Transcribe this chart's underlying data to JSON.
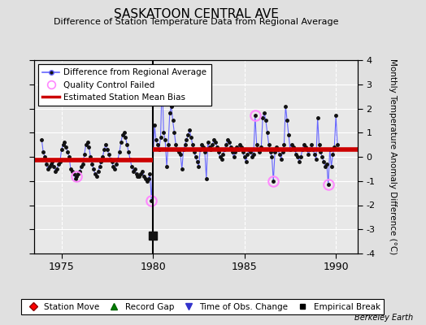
{
  "title": "SASKATOON CENTRAL AVE",
  "subtitle": "Difference of Station Temperature Data from Regional Average",
  "ylabel": "Monthly Temperature Anomaly Difference (°C)",
  "xlabel_years": [
    1975,
    1980,
    1985,
    1990
  ],
  "ylim": [
    -4,
    4
  ],
  "xlim": [
    1973.5,
    1991.2
  ],
  "background_color": "#e0e0e0",
  "plot_background": "#e8e8e8",
  "grid_color": "#ffffff",
  "bias_segment1": {
    "x": [
      1973.5,
      1980.0
    ],
    "y": [
      -0.15,
      -0.15
    ]
  },
  "bias_segment2": {
    "x": [
      1980.0,
      1991.2
    ],
    "y": [
      0.3,
      0.3
    ]
  },
  "break_x": 1980.0,
  "break_y": -3.25,
  "monthly_data": [
    [
      1973.917,
      0.7
    ],
    [
      1974.0,
      0.2
    ],
    [
      1974.083,
      0.0
    ],
    [
      1974.167,
      -0.3
    ],
    [
      1974.25,
      -0.5
    ],
    [
      1974.333,
      -0.4
    ],
    [
      1974.417,
      -0.3
    ],
    [
      1974.5,
      -0.2
    ],
    [
      1974.583,
      -0.4
    ],
    [
      1974.667,
      -0.6
    ],
    [
      1974.75,
      -0.5
    ],
    [
      1974.833,
      -0.3
    ],
    [
      1974.917,
      -0.2
    ],
    [
      1975.0,
      0.3
    ],
    [
      1975.083,
      0.5
    ],
    [
      1975.167,
      0.6
    ],
    [
      1975.25,
      0.4
    ],
    [
      1975.333,
      0.2
    ],
    [
      1975.417,
      0.0
    ],
    [
      1975.5,
      -0.5
    ],
    [
      1975.583,
      -0.6
    ],
    [
      1975.667,
      -0.7
    ],
    [
      1975.75,
      -0.9
    ],
    [
      1975.833,
      -0.8
    ],
    [
      1975.917,
      -0.7
    ],
    [
      1976.0,
      -0.6
    ],
    [
      1976.083,
      -0.4
    ],
    [
      1976.167,
      -0.3
    ],
    [
      1976.25,
      0.1
    ],
    [
      1976.333,
      0.5
    ],
    [
      1976.417,
      0.6
    ],
    [
      1976.5,
      0.4
    ],
    [
      1976.583,
      0.0
    ],
    [
      1976.667,
      -0.3
    ],
    [
      1976.75,
      -0.5
    ],
    [
      1976.833,
      -0.7
    ],
    [
      1976.917,
      -0.8
    ],
    [
      1977.0,
      -0.6
    ],
    [
      1977.083,
      -0.4
    ],
    [
      1977.167,
      -0.2
    ],
    [
      1977.25,
      0.0
    ],
    [
      1977.333,
      0.3
    ],
    [
      1977.417,
      0.5
    ],
    [
      1977.5,
      0.3
    ],
    [
      1977.583,
      0.1
    ],
    [
      1977.667,
      -0.1
    ],
    [
      1977.75,
      -0.2
    ],
    [
      1977.833,
      -0.4
    ],
    [
      1977.917,
      -0.5
    ],
    [
      1978.0,
      -0.3
    ],
    [
      1978.083,
      -0.1
    ],
    [
      1978.167,
      0.2
    ],
    [
      1978.25,
      0.6
    ],
    [
      1978.333,
      0.9
    ],
    [
      1978.417,
      1.0
    ],
    [
      1978.5,
      0.8
    ],
    [
      1978.583,
      0.5
    ],
    [
      1978.667,
      0.2
    ],
    [
      1978.75,
      -0.1
    ],
    [
      1978.833,
      -0.4
    ],
    [
      1978.917,
      -0.6
    ],
    [
      1979.0,
      -0.5
    ],
    [
      1979.083,
      -0.7
    ],
    [
      1979.167,
      -0.8
    ],
    [
      1979.25,
      -0.8
    ],
    [
      1979.333,
      -0.7
    ],
    [
      1979.417,
      -0.6
    ],
    [
      1979.5,
      -0.8
    ],
    [
      1979.583,
      -0.9
    ],
    [
      1979.667,
      -1.0
    ],
    [
      1979.75,
      -0.9
    ],
    [
      1979.833,
      -0.7
    ],
    [
      1979.917,
      -1.8
    ],
    [
      1980.083,
      1.3
    ],
    [
      1980.167,
      0.7
    ],
    [
      1980.25,
      0.5
    ],
    [
      1980.333,
      0.3
    ],
    [
      1980.417,
      0.8
    ],
    [
      1980.5,
      3.3
    ],
    [
      1980.583,
      1.0
    ],
    [
      1980.667,
      0.7
    ],
    [
      1980.75,
      -0.4
    ],
    [
      1980.833,
      0.5
    ],
    [
      1980.917,
      1.8
    ],
    [
      1981.0,
      2.1
    ],
    [
      1981.083,
      1.5
    ],
    [
      1981.167,
      1.0
    ],
    [
      1981.25,
      0.5
    ],
    [
      1981.333,
      0.3
    ],
    [
      1981.417,
      0.2
    ],
    [
      1981.5,
      0.1
    ],
    [
      1981.583,
      -0.5
    ],
    [
      1981.667,
      0.3
    ],
    [
      1981.75,
      0.5
    ],
    [
      1981.833,
      0.7
    ],
    [
      1981.917,
      0.9
    ],
    [
      1982.0,
      1.1
    ],
    [
      1982.083,
      0.8
    ],
    [
      1982.167,
      0.5
    ],
    [
      1982.25,
      0.2
    ],
    [
      1982.333,
      0.0
    ],
    [
      1982.417,
      -0.2
    ],
    [
      1982.5,
      -0.4
    ],
    [
      1982.583,
      0.3
    ],
    [
      1982.667,
      0.5
    ],
    [
      1982.75,
      0.4
    ],
    [
      1982.833,
      0.2
    ],
    [
      1982.917,
      -0.9
    ],
    [
      1983.0,
      0.6
    ],
    [
      1983.083,
      0.4
    ],
    [
      1983.167,
      0.3
    ],
    [
      1983.25,
      0.5
    ],
    [
      1983.333,
      0.7
    ],
    [
      1983.417,
      0.6
    ],
    [
      1983.5,
      0.4
    ],
    [
      1983.583,
      0.2
    ],
    [
      1983.667,
      0.0
    ],
    [
      1983.75,
      -0.1
    ],
    [
      1983.833,
      0.1
    ],
    [
      1983.917,
      0.3
    ],
    [
      1984.0,
      0.5
    ],
    [
      1984.083,
      0.7
    ],
    [
      1984.167,
      0.6
    ],
    [
      1984.25,
      0.4
    ],
    [
      1984.333,
      0.2
    ],
    [
      1984.417,
      0.0
    ],
    [
      1984.5,
      0.2
    ],
    [
      1984.583,
      0.4
    ],
    [
      1984.667,
      0.3
    ],
    [
      1984.75,
      0.5
    ],
    [
      1984.833,
      0.4
    ],
    [
      1984.917,
      0.2
    ],
    [
      1985.0,
      0.0
    ],
    [
      1985.083,
      -0.2
    ],
    [
      1985.167,
      0.1
    ],
    [
      1985.25,
      0.3
    ],
    [
      1985.333,
      0.2
    ],
    [
      1985.417,
      0.0
    ],
    [
      1985.5,
      0.1
    ],
    [
      1985.583,
      1.7
    ],
    [
      1985.667,
      0.5
    ],
    [
      1985.75,
      0.3
    ],
    [
      1985.833,
      0.2
    ],
    [
      1985.917,
      0.4
    ],
    [
      1986.0,
      1.6
    ],
    [
      1986.083,
      1.8
    ],
    [
      1986.167,
      1.5
    ],
    [
      1986.25,
      1.0
    ],
    [
      1986.333,
      0.5
    ],
    [
      1986.417,
      0.2
    ],
    [
      1986.5,
      0.0
    ],
    [
      1986.583,
      -1.0
    ],
    [
      1986.667,
      0.2
    ],
    [
      1986.75,
      0.4
    ],
    [
      1986.833,
      0.3
    ],
    [
      1986.917,
      0.1
    ],
    [
      1987.0,
      -0.1
    ],
    [
      1987.083,
      0.2
    ],
    [
      1987.167,
      0.5
    ],
    [
      1987.25,
      2.1
    ],
    [
      1987.333,
      1.5
    ],
    [
      1987.417,
      0.9
    ],
    [
      1987.5,
      0.3
    ],
    [
      1987.583,
      0.5
    ],
    [
      1987.667,
      0.4
    ],
    [
      1987.75,
      0.3
    ],
    [
      1987.833,
      0.1
    ],
    [
      1987.917,
      0.0
    ],
    [
      1988.0,
      -0.2
    ],
    [
      1988.083,
      0.0
    ],
    [
      1988.167,
      0.3
    ],
    [
      1988.25,
      0.5
    ],
    [
      1988.333,
      0.4
    ],
    [
      1988.417,
      0.3
    ],
    [
      1988.5,
      0.1
    ],
    [
      1988.583,
      0.3
    ],
    [
      1988.667,
      0.5
    ],
    [
      1988.75,
      0.3
    ],
    [
      1988.833,
      0.1
    ],
    [
      1988.917,
      -0.1
    ],
    [
      1989.0,
      1.6
    ],
    [
      1989.083,
      0.5
    ],
    [
      1989.167,
      0.2
    ],
    [
      1989.25,
      0.0
    ],
    [
      1989.333,
      -0.2
    ],
    [
      1989.417,
      -0.4
    ],
    [
      1989.5,
      -0.3
    ],
    [
      1989.583,
      -1.15
    ],
    [
      1989.667,
      0.3
    ],
    [
      1989.75,
      -0.4
    ],
    [
      1989.833,
      0.1
    ],
    [
      1989.917,
      0.4
    ],
    [
      1990.0,
      1.7
    ],
    [
      1990.083,
      0.5
    ]
  ],
  "qc_failed": [
    [
      1975.833,
      -0.8
    ],
    [
      1979.917,
      -1.8
    ],
    [
      1980.5,
      3.3
    ],
    [
      1985.583,
      1.7
    ],
    [
      1986.583,
      -1.0
    ],
    [
      1989.583,
      -1.15
    ]
  ],
  "line_color": "#6666ff",
  "marker_color": "#111111",
  "qc_color": "#ff88ff",
  "bias_color": "#cc0000",
  "break_color": "#111111",
  "berkeley_earth_text": "Berkeley Earth",
  "title_fontsize": 11,
  "subtitle_fontsize": 8,
  "legend_fontsize": 7.5,
  "yticks": [
    -4,
    -3,
    -2,
    -1,
    0,
    1,
    2,
    3,
    4
  ]
}
